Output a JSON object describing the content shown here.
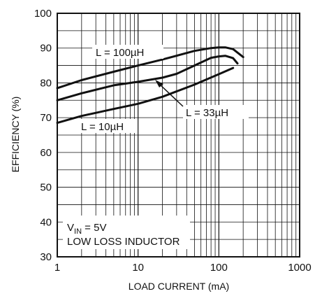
{
  "chart_data": {
    "type": "line",
    "title": "",
    "xlabel": "LOAD CURRENT (mA)",
    "ylabel": "EFFICIENCY (%)",
    "xscale": "log",
    "xlim": [
      1,
      1000
    ],
    "ylim": [
      30,
      100
    ],
    "grid": true,
    "x_ticks": [
      1,
      10,
      100,
      1000
    ],
    "x_tick_labels": [
      "1",
      "10",
      "100",
      "1000"
    ],
    "y_ticks": [
      30,
      40,
      50,
      60,
      70,
      80,
      90,
      100
    ],
    "y_tick_labels": [
      "30",
      "40",
      "50",
      "60",
      "70",
      "80",
      "90",
      "100"
    ],
    "colors": {
      "line": "#111111",
      "grid": "#111111",
      "background": "#ffffff"
    },
    "series": [
      {
        "name": "L = 100µH",
        "x": [
          1,
          2,
          5,
          10,
          20,
          50,
          80,
          100,
          120,
          150,
          200
        ],
        "y": [
          78.5,
          80.8,
          83.2,
          85.0,
          86.7,
          89.2,
          90.0,
          90.2,
          90.2,
          89.7,
          87.4
        ]
      },
      {
        "name": "L = 33µH",
        "x": [
          1,
          2,
          5,
          10,
          20,
          30,
          50,
          80,
          100,
          120,
          150,
          170
        ],
        "y": [
          75.0,
          77.0,
          79.3,
          80.3,
          81.5,
          82.6,
          85.0,
          87.2,
          87.6,
          87.8,
          87.1,
          85.6
        ]
      },
      {
        "name": "L = 10µH",
        "x": [
          1,
          2,
          5,
          10,
          20,
          50,
          100,
          150
        ],
        "y": [
          68.5,
          70.5,
          72.5,
          74.0,
          76.0,
          79.5,
          82.5,
          84.3
        ]
      }
    ],
    "annotations": [
      {
        "id": "l100",
        "text": "L = 100µH"
      },
      {
        "id": "l33",
        "text": "L = 33µH"
      },
      {
        "id": "l10",
        "text": "L = 10µH"
      }
    ],
    "condition_box": {
      "vin_prefix": "V",
      "vin_sub": "IN",
      "vin_value": " = 5V",
      "line2": "LOW LOSS INDUCTOR"
    }
  }
}
